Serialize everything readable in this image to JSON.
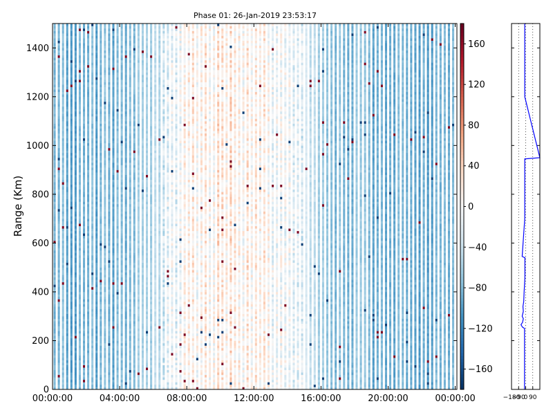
{
  "chart_data": [
    {
      "type": "heatmap",
      "title": "Phase 01: 26-Jan-2019 23:53:17",
      "xlabel": "",
      "ylabel": "Range (Km)",
      "x_ticks": [
        "00:00:00",
        "04:00:00",
        "08:00:00",
        "12:00:00",
        "16:00:00",
        "20:00:00",
        "00:00:00"
      ],
      "x_tick_hours": [
        0,
        4,
        8,
        12,
        16,
        20,
        24
      ],
      "xlim_hours": [
        0,
        24.1
      ],
      "y_ticks": [
        0,
        200,
        400,
        600,
        800,
        1000,
        1200,
        1400
      ],
      "ylim": [
        0,
        1500
      ],
      "colormap": "RdBu_r",
      "clim": [
        -180,
        180
      ],
      "colorbar_ticks": [
        -160,
        -120,
        -80,
        -40,
        0,
        40,
        80,
        120,
        160
      ],
      "colorbar_tick_labels": [
        "−160",
        "−120",
        "−80",
        "−40",
        "0",
        "40",
        "80",
        "120",
        "160"
      ],
      "num_time_columns": 96,
      "num_range_rows": 150,
      "column_gap_pattern": "white vertical stripe every other column",
      "phase_profile_by_hour": [
        {
          "hour": 0,
          "mean": -90
        },
        {
          "hour": 4,
          "mean": -88
        },
        {
          "hour": 6,
          "mean": -55
        },
        {
          "hour": 8,
          "mean": 5
        },
        {
          "hour": 10,
          "mean": 20
        },
        {
          "hour": 12,
          "mean": 12
        },
        {
          "hour": 14,
          "mean": -10
        },
        {
          "hour": 16,
          "mean": -65
        },
        {
          "hour": 20,
          "mean": -90
        },
        {
          "hour": 24,
          "mean": -92
        }
      ]
    },
    {
      "type": "line",
      "title": "",
      "xlabel": "",
      "ylabel": "",
      "x_ticks": [
        "−180",
        "−90",
        "0",
        "90"
      ],
      "xlim": [
        -180,
        180
      ],
      "ylim": [
        0,
        1500
      ],
      "grid": "vertical dotted",
      "series": [
        {
          "color": "#0000ff",
          "range_km": [
            0,
            250,
            255,
            265,
            275,
            290,
            300,
            320,
            340,
            360,
            400,
            460,
            520,
            540,
            545,
            700,
            900,
            945,
            950,
            1200,
            1500
          ],
          "phase_deg": [
            -15,
            -15,
            -40,
            -60,
            -40,
            -30,
            -45,
            -30,
            -35,
            -25,
            -20,
            -10,
            -10,
            -10,
            -45,
            -12,
            -12,
            -12,
            180,
            -12,
            -12
          ]
        }
      ]
    }
  ]
}
